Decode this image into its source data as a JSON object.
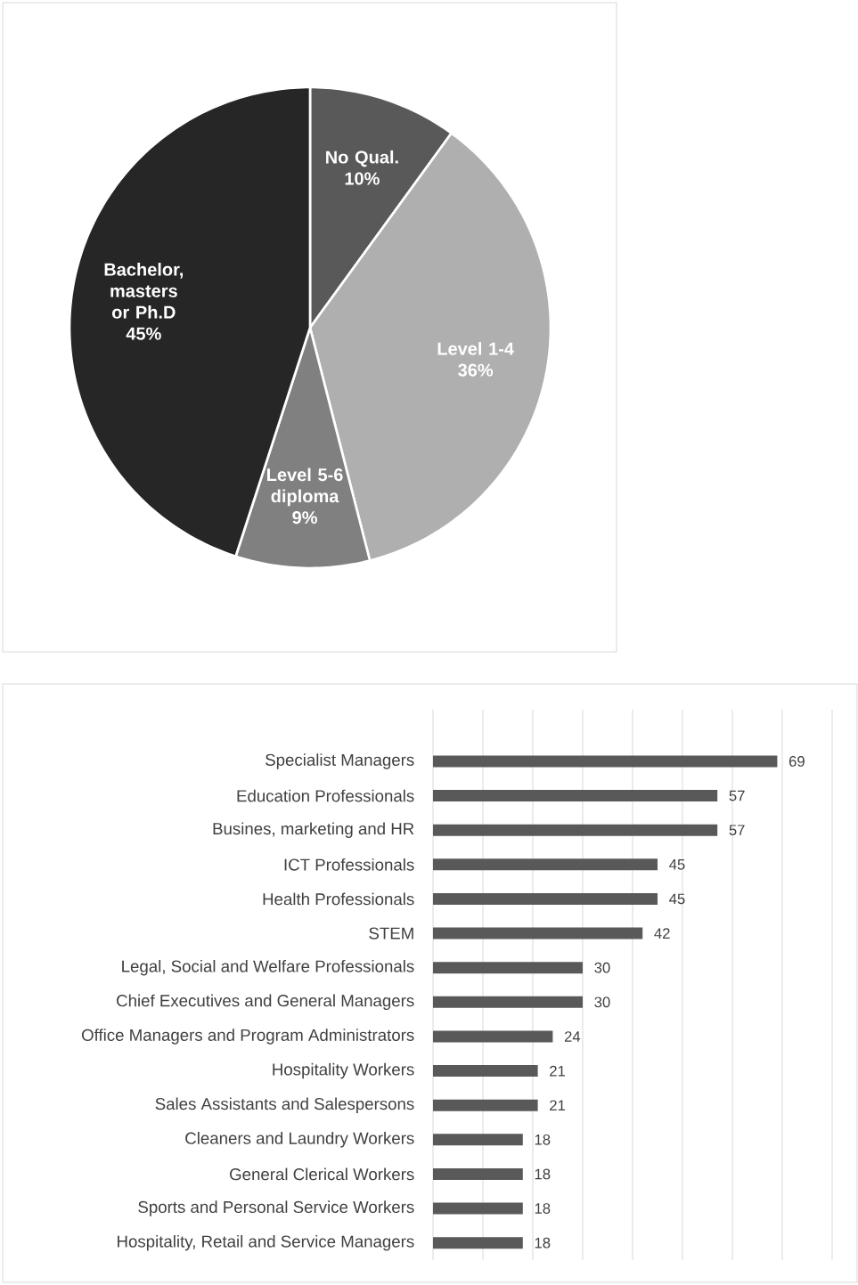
{
  "chart_data": [
    {
      "type": "pie",
      "categories": [
        "No Qual.",
        "Level 1-4",
        "Level 5-6 diploma",
        "Bachelor, masters or Ph.D"
      ],
      "values": [
        10,
        36,
        9,
        45
      ],
      "value_labels": [
        "10%",
        "36%",
        "9%",
        "45%"
      ],
      "colors": [
        "#595959",
        "#afafaf",
        "#808080",
        "#262626"
      ]
    },
    {
      "type": "bar",
      "orientation": "horizontal",
      "categories": [
        "Specialist Managers",
        "Education Professionals",
        "Busines, marketing and HR",
        "ICT Professionals",
        "Health Professionals",
        "STEM",
        "Legal, Social and Welfare Professionals",
        "Chief Executives and General Managers",
        "Office Managers and Program Administrators",
        "Hospitality Workers",
        "Sales Assistants and Salespersons",
        "Cleaners and Laundry Workers",
        "General Clerical Workers",
        "Sports and Personal Service Workers",
        "Hospitality, Retail and Service Managers"
      ],
      "values": [
        69,
        57,
        57,
        45,
        45,
        42,
        30,
        30,
        24,
        21,
        21,
        18,
        18,
        18,
        18
      ],
      "color": "#595959",
      "data_labels": true,
      "xlim": [
        0,
        80
      ],
      "xticks": [
        {
          "value": 0,
          "label": null
        },
        {
          "value": 10,
          "label": null
        },
        {
          "value": 20,
          "label": null
        },
        {
          "value": 30,
          "label": null
        },
        {
          "value": 40,
          "label": null
        },
        {
          "value": 50,
          "label": null
        },
        {
          "value": 60,
          "label": null
        },
        {
          "value": 70,
          "label": null
        },
        {
          "value": 80,
          "label": null
        }
      ],
      "grid": "x",
      "tick_labels": "y"
    }
  ]
}
